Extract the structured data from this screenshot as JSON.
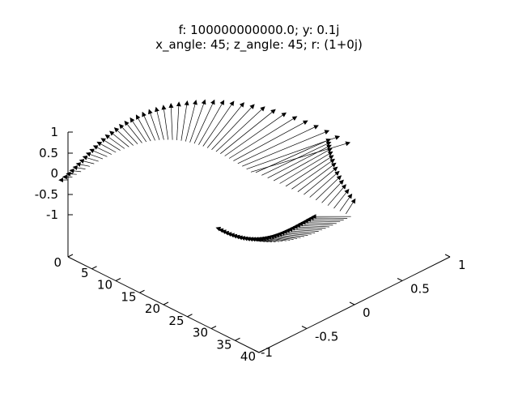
{
  "chart_data": {
    "type": "3d-vector-field",
    "title_lines": [
      "f: 100000000000.0; y: 0.1j",
      "x_angle: 45; z_angle: 45; r: (1+0j)"
    ],
    "axes": {
      "x": {
        "range": [
          0,
          40
        ],
        "ticks": [
          "0",
          "5",
          "10",
          "15",
          "20",
          "25",
          "30",
          "35",
          "40"
        ]
      },
      "y": {
        "range": [
          -1,
          1
        ],
        "ticks": [
          "-1",
          "-0.5",
          "0",
          "0.5",
          "1"
        ]
      },
      "z": {
        "range": [
          -1,
          1
        ],
        "ticks": [
          "-1",
          "-0.5",
          "0",
          "0.5",
          "1"
        ]
      }
    },
    "grid": false,
    "legend": "none",
    "colors": {
      "axes": "#000000",
      "vectors": "#000000",
      "background": "#ffffff"
    }
  }
}
